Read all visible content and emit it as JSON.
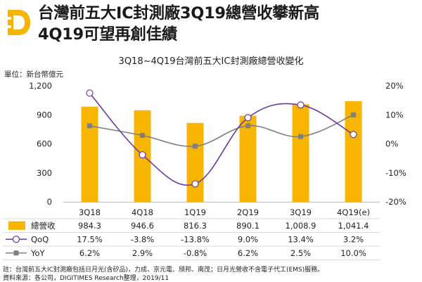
{
  "header": {
    "logo_icon": "digitimes-d-logo-icon",
    "logo_color": "#f5b400",
    "title_line1": "台灣前五大IC封測廠3Q19總營收攀新高",
    "title_line2": "4Q19可望再創佳績"
  },
  "chart_data": {
    "type": "bar",
    "title": "3Q18~4Q19台灣前五大IC封測廠總營收變化",
    "left_axis_label": "單位：新台幣億元",
    "categories": [
      "3Q18",
      "4Q18",
      "1Q19",
      "2Q19",
      "3Q19",
      "4Q19(e)"
    ],
    "left_ticks": [
      "1,200",
      "900",
      "600",
      "300",
      "0"
    ],
    "right_ticks": [
      "20%",
      "10%",
      "0%",
      "-10%",
      "-20%"
    ],
    "ylim_left": [
      0,
      1200
    ],
    "ylim_right": [
      -20,
      20
    ],
    "series": [
      {
        "name": "總營收",
        "kind": "bar",
        "axis": "left",
        "color": "#f7b500",
        "values": [
          984.3,
          946.6,
          816.3,
          890.1,
          1008.9,
          1041.4
        ],
        "labels": [
          "984.3",
          "946.6",
          "816.3",
          "890.1",
          "1,008.9",
          "1,041.4"
        ]
      },
      {
        "name": "QoQ",
        "kind": "line",
        "axis": "right",
        "color": "#6a3aa2",
        "values": [
          17.5,
          -3.8,
          -13.8,
          9.0,
          13.4,
          3.2
        ],
        "labels": [
          "17.5%",
          "-3.8%",
          "-13.8%",
          "9.0%",
          "13.4%",
          "3.2%"
        ]
      },
      {
        "name": "YoY",
        "kind": "line",
        "axis": "right",
        "color": "#7f7f7f",
        "values": [
          6.2,
          2.9,
          -0.8,
          6.2,
          2.5,
          10.0
        ],
        "labels": [
          "6.2%",
          "2.9%",
          "-0.8%",
          "6.2%",
          "2.5%",
          "10.0%"
        ]
      }
    ],
    "grid": false,
    "legend_placement": "table below chart"
  },
  "notes": {
    "line1": "註：台灣前五大IC封測廠包括日月光(含矽品)，力成、京元電、頎邦、南茂；日月光營收不含電子代工(EMS)服務。",
    "line2": "資料來源：各公司，DIGITIMES Research整理，2019/11"
  }
}
